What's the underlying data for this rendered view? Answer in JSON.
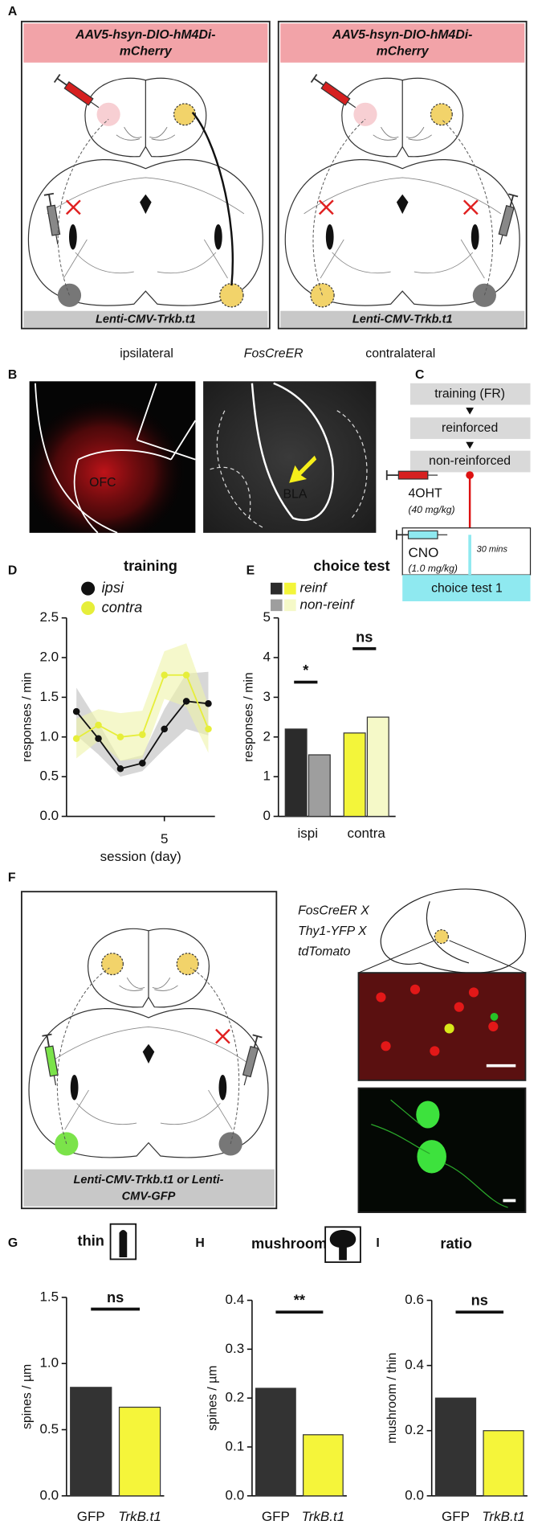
{
  "panel_labels": [
    "A",
    "B",
    "C",
    "D",
    "E",
    "F",
    "G",
    "H",
    "I"
  ],
  "panel_a": {
    "left": {
      "header": [
        "AAV5-hsyn-DIO-hM4Di-",
        "mCherry"
      ],
      "footer": "Lenti-CMV-Trkb.t1"
    },
    "right": {
      "header": [
        "AAV5-hsyn-DIO-hM4Di-",
        "mCherry"
      ],
      "footer": "Lenti-CMV-Trkb.t1"
    },
    "labels": [
      "ipsilateral",
      "FosCreER",
      "contralateral"
    ]
  },
  "panel_b": {
    "ofc": "OFC",
    "bla": "BLA"
  },
  "panel_c": {
    "steps": [
      "training (FR)",
      "reinforced",
      "non-reinforced"
    ],
    "drug1": [
      "4OHT",
      "(40 mg/kg)"
    ],
    "drug2": [
      "CNO",
      "(1.0 mg/kg)"
    ],
    "delay": "30 mins",
    "test": "choice test 1"
  },
  "panel_f": {
    "label": [
      "FosCreER X",
      "Thy1-YFP X",
      "tdTomato"
    ],
    "footer": [
      "Lenti-CMV-Trkb.t1 or Lenti-",
      "CMV-GFP"
    ]
  },
  "chart_data": [
    {
      "type": "line",
      "title": "training",
      "xlabel": "session (day)",
      "ylabel": "responses / min",
      "x": [
        1,
        2,
        3,
        4,
        5,
        6,
        7
      ],
      "xlim": [
        0.55,
        7.3
      ],
      "xticks": [
        5
      ],
      "ylim": [
        0,
        2.5
      ],
      "yticks": [
        {
          "value": 0,
          "label": "0.0"
        },
        {
          "value": 0.5,
          "label": "0.5"
        },
        {
          "value": 1,
          "label": "1.0"
        },
        {
          "value": 1.5,
          "label": "1.5"
        },
        {
          "value": 2,
          "label": "2.0"
        },
        {
          "value": 2.5,
          "label": "2.5"
        }
      ],
      "series": [
        {
          "name": "ipsi",
          "color": "#111111",
          "band_color": "#bdbdbd",
          "values": [
            1.32,
            0.98,
            0.6,
            0.67,
            1.1,
            1.45,
            1.42
          ],
          "errors": [
            0.3,
            0.2,
            0.1,
            0.1,
            0.25,
            0.35,
            0.4
          ]
        },
        {
          "name": "contra",
          "color": "#e6ee3a",
          "band_color": "#eef4a8",
          "values": [
            0.98,
            1.15,
            1.0,
            1.03,
            1.78,
            1.78,
            1.1
          ],
          "errors": [
            0.25,
            0.2,
            0.3,
            0.3,
            0.3,
            0.4,
            0.3
          ]
        }
      ]
    },
    {
      "type": "grouped_bar",
      "title": "choice test",
      "ylabel": "responses / min",
      "categories": [
        "ispi",
        "contra"
      ],
      "ylim": [
        0,
        5
      ],
      "yticks": [
        0,
        1,
        2,
        3,
        4,
        5
      ],
      "series": [
        {
          "name": "reinf",
          "colors": [
            "#2b2b2b",
            "#f3f53a"
          ],
          "values": [
            2.2,
            2.1
          ]
        },
        {
          "name": "non-reinf",
          "colors": [
            "#9e9e9e",
            "#f5f9c8"
          ],
          "values": [
            1.55,
            2.5
          ]
        }
      ],
      "annotations": [
        "*",
        "ns"
      ]
    },
    {
      "type": "bar",
      "title": "thin",
      "ylabel": "spines / µm",
      "categories": [
        "GFP",
        "TrkB.t1"
      ],
      "values": [
        0.82,
        0.67
      ],
      "colors": [
        "#333333",
        "#f5f53a"
      ],
      "ylim": [
        0,
        1.5
      ],
      "yticks": [
        {
          "value": 0,
          "label": "0.0"
        },
        {
          "value": 0.5,
          "label": "0.5"
        },
        {
          "value": 1,
          "label": "1.0"
        },
        {
          "value": 1.5,
          "label": "1.5"
        }
      ],
      "annotations": [
        "ns"
      ]
    },
    {
      "type": "bar",
      "title": "mushroom",
      "ylabel": "spines / µm",
      "categories": [
        "GFP",
        "TrkB.t1"
      ],
      "values": [
        0.22,
        0.125
      ],
      "colors": [
        "#333333",
        "#f5f53a"
      ],
      "ylim": [
        0,
        0.4
      ],
      "yticks": [
        {
          "value": 0,
          "label": "0.0"
        },
        {
          "value": 0.1,
          "label": "0.1"
        },
        {
          "value": 0.2,
          "label": "0.2"
        },
        {
          "value": 0.3,
          "label": "0.3"
        },
        {
          "value": 0.4,
          "label": "0.4"
        }
      ],
      "annotations": [
        "**"
      ]
    },
    {
      "type": "bar",
      "title": "ratio",
      "ylabel": "mushroom / thin",
      "categories": [
        "GFP",
        "TrkB.t1"
      ],
      "values": [
        0.3,
        0.2
      ],
      "colors": [
        "#333333",
        "#f5f53a"
      ],
      "ylim": [
        0,
        0.6
      ],
      "yticks": [
        {
          "value": 0,
          "label": "0.0"
        },
        {
          "value": 0.2,
          "label": "0.2"
        },
        {
          "value": 0.4,
          "label": "0.4"
        },
        {
          "value": 0.6,
          "label": "0.6"
        }
      ],
      "annotations": [
        "ns"
      ]
    }
  ]
}
